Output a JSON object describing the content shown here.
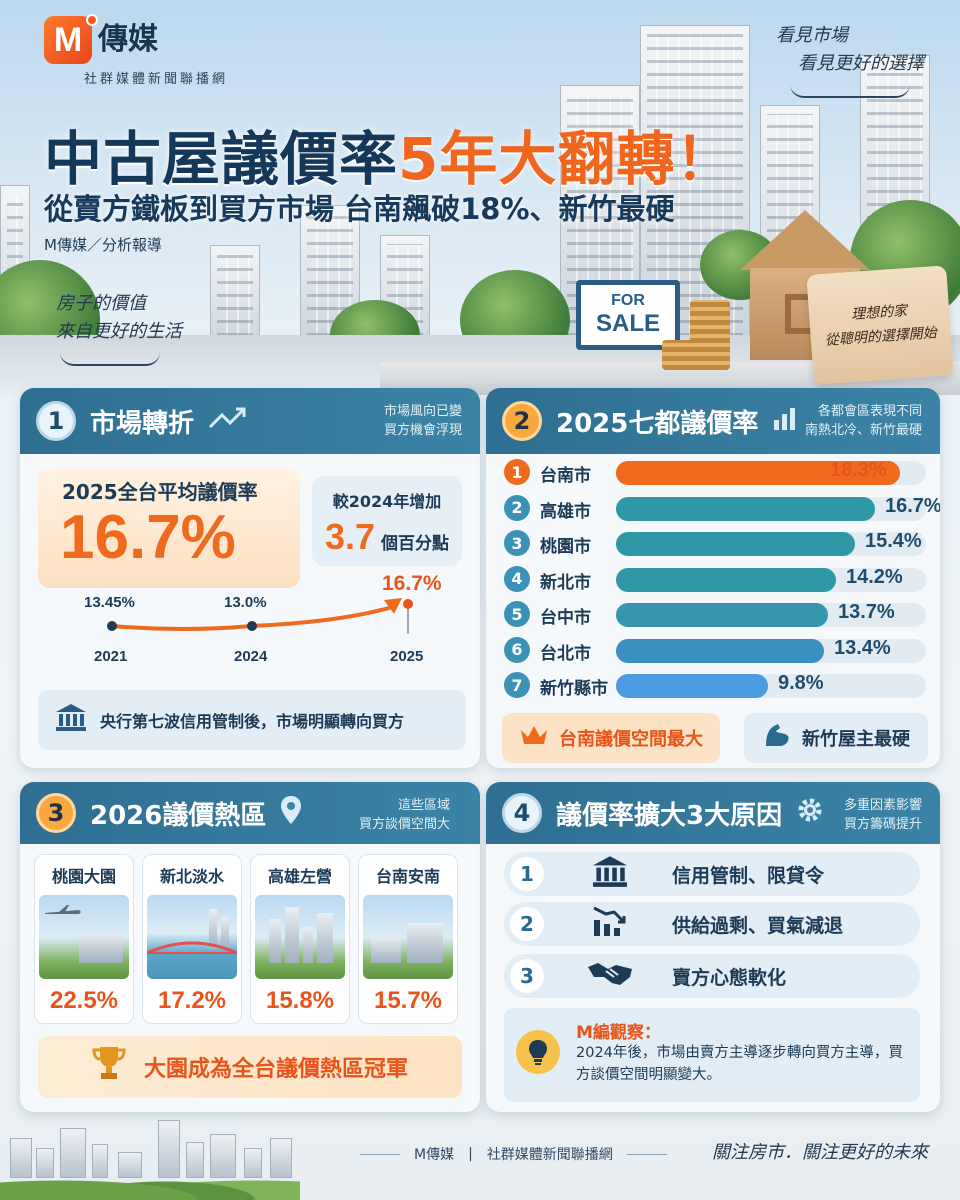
{
  "brand": {
    "logo_letter": "M",
    "name": "傳媒",
    "tagline": "社群媒體新聞聯播網"
  },
  "hero": {
    "title_part1": "中古屋議價率",
    "title_part2": "5年大翻轉！",
    "subtitle": "從賣方鐵板到買方市場  台南飆破18%、新竹最硬",
    "byline": "M傳媒／分析報導",
    "quote_left_1": "房子的價值",
    "quote_left_2": "來自更好的生活",
    "quote_right_1": "看見市場",
    "quote_right_2": "看見更好的選擇",
    "sign_line1": "FOR",
    "sign_line2": "SALE",
    "tag_line1": "理想的家",
    "tag_line2": "從聰明的選擇開始"
  },
  "panel1": {
    "num": "1",
    "title": "市場轉折",
    "note_line1": "市場風向已變",
    "note_line2": "買方機會浮現",
    "big_label": "2025全台平均議價率",
    "big_value": "16.7%",
    "inc_label": "較2024年增加",
    "inc_value": "3.7",
    "inc_unit": "個百分點",
    "trend": [
      {
        "year": "2021",
        "label": "13.45%",
        "value": 13.45
      },
      {
        "year": "2024",
        "label": "13.0%",
        "value": 13.0
      },
      {
        "year": "2025",
        "label": "16.7%",
        "value": 16.7
      }
    ],
    "info": "央行第七波信用管制後，市場明顯轉向買方"
  },
  "panel2": {
    "num": "2",
    "title": "2025七都議價率",
    "note_line1": "各都會區表現不同",
    "note_line2": "南熱北冷、新竹最硬",
    "scale_max": 20,
    "rows": [
      {
        "rank": "1",
        "city": "台南市",
        "label": "18.3%",
        "value": 18.3,
        "color": "#f06a1e"
      },
      {
        "rank": "2",
        "city": "高雄市",
        "label": "16.7%",
        "value": 16.7,
        "color": "#2f98a6"
      },
      {
        "rank": "3",
        "city": "桃園市",
        "label": "15.4%",
        "value": 15.4,
        "color": "#2f98a6"
      },
      {
        "rank": "4",
        "city": "新北市",
        "label": "14.2%",
        "value": 14.2,
        "color": "#2f98a6"
      },
      {
        "rank": "5",
        "city": "台中市",
        "label": "13.7%",
        "value": 13.7,
        "color": "#3596ad"
      },
      {
        "rank": "6",
        "city": "台北市",
        "label": "13.4%",
        "value": 13.4,
        "color": "#3a90bf"
      },
      {
        "rank": "7",
        "city": "新竹縣市",
        "label": "9.8%",
        "value": 9.8,
        "color": "#4b9be0"
      }
    ],
    "tag_left": "台南議價空間最大",
    "tag_right": "新竹屋主最硬"
  },
  "panel3": {
    "num": "3",
    "title": "2026議價熱區",
    "note_line1": "這些區域",
    "note_line2": "買方談價空間大",
    "areas": [
      {
        "name": "桃園大園",
        "label": "22.5%",
        "value": 22.5
      },
      {
        "name": "新北淡水",
        "label": "17.2%",
        "value": 17.2
      },
      {
        "name": "高雄左營",
        "label": "15.8%",
        "value": 15.8
      },
      {
        "name": "台南安南",
        "label": "15.7%",
        "value": 15.7
      }
    ],
    "champ": "大園成為全台議價熱區冠軍"
  },
  "panel4": {
    "num": "4",
    "title": "議價率擴大3大原因",
    "note_line1": "多重因素影響",
    "note_line2": "買方籌碼提升",
    "reasons": [
      {
        "num": "1",
        "icon": "bank-icon",
        "text": "信用管制、限貸令"
      },
      {
        "num": "2",
        "icon": "chart-down-icon",
        "text": "供給過剩、買氣減退"
      },
      {
        "num": "3",
        "icon": "handshake-icon",
        "text": "賣方心態軟化"
      }
    ],
    "obs_title": "M編觀察：",
    "obs_text": "2024年後，市場由賣方主導逐步轉向買方主導，買方談價空間明顯變大。"
  },
  "footer": {
    "brand": "M傳媒",
    "network": "社群媒體新聞聯播網",
    "slogan": "關注房市．關注更好的未來"
  },
  "colors": {
    "accent": "#f06a1e",
    "navy": "#14385a",
    "panel_head": "#2f6f91"
  }
}
